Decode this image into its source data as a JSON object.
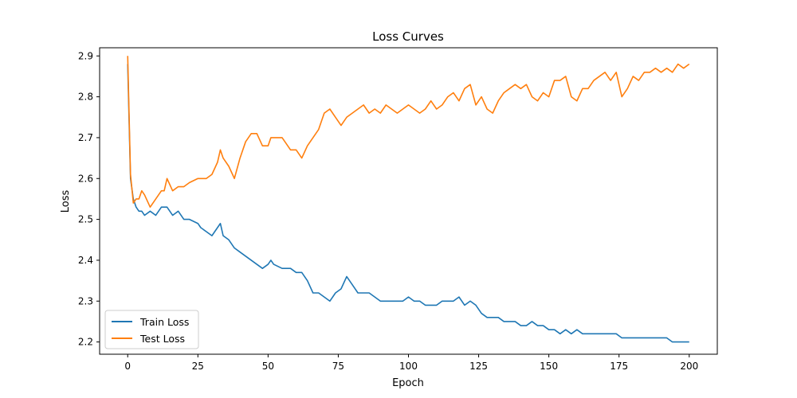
{
  "chart_data": {
    "type": "line",
    "title": "Loss Curves",
    "xlabel": "Epoch",
    "ylabel": "Loss",
    "xlim": [
      -10,
      210
    ],
    "ylim": [
      2.17,
      2.92
    ],
    "x_ticks": [
      0,
      25,
      50,
      75,
      100,
      125,
      150,
      175,
      200
    ],
    "y_ticks": [
      2.2,
      2.3,
      2.4,
      2.5,
      2.6,
      2.7,
      2.8,
      2.9
    ],
    "grid": false,
    "legend_position": "lower-left",
    "colors": {
      "train": "#1f77b4",
      "test": "#ff7f0e"
    },
    "series": [
      {
        "name": "Train Loss",
        "x": [
          0,
          1,
          2,
          3,
          4,
          5,
          6,
          8,
          10,
          12,
          13,
          14,
          16,
          18,
          20,
          22,
          25,
          26,
          28,
          30,
          32,
          33,
          34,
          36,
          38,
          40,
          42,
          44,
          46,
          48,
          50,
          51,
          52,
          55,
          58,
          60,
          62,
          64,
          66,
          68,
          70,
          72,
          74,
          76,
          78,
          80,
          82,
          84,
          86,
          88,
          90,
          92,
          94,
          96,
          98,
          100,
          102,
          104,
          106,
          108,
          110,
          112,
          114,
          116,
          118,
          120,
          122,
          124,
          126,
          128,
          130,
          132,
          134,
          136,
          138,
          140,
          142,
          144,
          146,
          148,
          150,
          152,
          154,
          156,
          158,
          160,
          162,
          164,
          166,
          168,
          170,
          172,
          174,
          176,
          178,
          180,
          182,
          184,
          186,
          188,
          190,
          192,
          194,
          196,
          198,
          200
        ],
        "values": [
          2.88,
          2.6,
          2.55,
          2.53,
          2.52,
          2.52,
          2.51,
          2.52,
          2.51,
          2.53,
          2.53,
          2.53,
          2.51,
          2.52,
          2.5,
          2.5,
          2.49,
          2.48,
          2.47,
          2.46,
          2.48,
          2.49,
          2.46,
          2.45,
          2.43,
          2.42,
          2.41,
          2.4,
          2.39,
          2.38,
          2.39,
          2.4,
          2.39,
          2.38,
          2.38,
          2.37,
          2.37,
          2.35,
          2.32,
          2.32,
          2.31,
          2.3,
          2.32,
          2.33,
          2.36,
          2.34,
          2.32,
          2.32,
          2.32,
          2.31,
          2.3,
          2.3,
          2.3,
          2.3,
          2.3,
          2.31,
          2.3,
          2.3,
          2.29,
          2.29,
          2.29,
          2.3,
          2.3,
          2.3,
          2.31,
          2.29,
          2.3,
          2.29,
          2.27,
          2.26,
          2.26,
          2.26,
          2.25,
          2.25,
          2.25,
          2.24,
          2.24,
          2.25,
          2.24,
          2.24,
          2.23,
          2.23,
          2.22,
          2.23,
          2.22,
          2.23,
          2.22,
          2.22,
          2.22,
          2.22,
          2.22,
          2.22,
          2.22,
          2.21,
          2.21,
          2.21,
          2.21,
          2.21,
          2.21,
          2.21,
          2.21,
          2.21,
          2.2,
          2.2,
          2.2,
          2.2
        ]
      },
      {
        "name": "Test Loss",
        "x": [
          0,
          1,
          2,
          3,
          4,
          5,
          6,
          8,
          10,
          12,
          13,
          14,
          16,
          18,
          20,
          22,
          25,
          26,
          28,
          30,
          32,
          33,
          34,
          36,
          38,
          40,
          42,
          44,
          46,
          48,
          50,
          51,
          52,
          55,
          58,
          60,
          62,
          64,
          66,
          68,
          70,
          72,
          74,
          76,
          78,
          80,
          82,
          84,
          86,
          88,
          90,
          92,
          94,
          96,
          98,
          100,
          102,
          104,
          106,
          108,
          110,
          112,
          114,
          116,
          118,
          120,
          122,
          124,
          126,
          128,
          130,
          132,
          134,
          136,
          138,
          140,
          142,
          144,
          146,
          148,
          150,
          152,
          154,
          156,
          158,
          160,
          162,
          164,
          166,
          168,
          170,
          172,
          174,
          176,
          178,
          180,
          182,
          184,
          186,
          188,
          190,
          192,
          194,
          196,
          198,
          200
        ],
        "values": [
          2.9,
          2.61,
          2.54,
          2.55,
          2.55,
          2.57,
          2.56,
          2.53,
          2.55,
          2.57,
          2.57,
          2.6,
          2.57,
          2.58,
          2.58,
          2.59,
          2.6,
          2.6,
          2.6,
          2.61,
          2.64,
          2.67,
          2.65,
          2.63,
          2.6,
          2.65,
          2.69,
          2.71,
          2.71,
          2.68,
          2.68,
          2.7,
          2.7,
          2.7,
          2.67,
          2.67,
          2.65,
          2.68,
          2.7,
          2.72,
          2.76,
          2.77,
          2.75,
          2.73,
          2.75,
          2.76,
          2.77,
          2.78,
          2.76,
          2.77,
          2.76,
          2.78,
          2.77,
          2.76,
          2.77,
          2.78,
          2.77,
          2.76,
          2.77,
          2.79,
          2.77,
          2.78,
          2.8,
          2.81,
          2.79,
          2.82,
          2.83,
          2.78,
          2.8,
          2.77,
          2.76,
          2.79,
          2.81,
          2.82,
          2.83,
          2.82,
          2.83,
          2.8,
          2.79,
          2.81,
          2.8,
          2.84,
          2.84,
          2.85,
          2.8,
          2.79,
          2.82,
          2.82,
          2.84,
          2.85,
          2.86,
          2.84,
          2.86,
          2.8,
          2.82,
          2.85,
          2.84,
          2.86,
          2.86,
          2.87,
          2.86,
          2.87,
          2.86,
          2.88,
          2.87,
          2.88
        ]
      }
    ]
  }
}
